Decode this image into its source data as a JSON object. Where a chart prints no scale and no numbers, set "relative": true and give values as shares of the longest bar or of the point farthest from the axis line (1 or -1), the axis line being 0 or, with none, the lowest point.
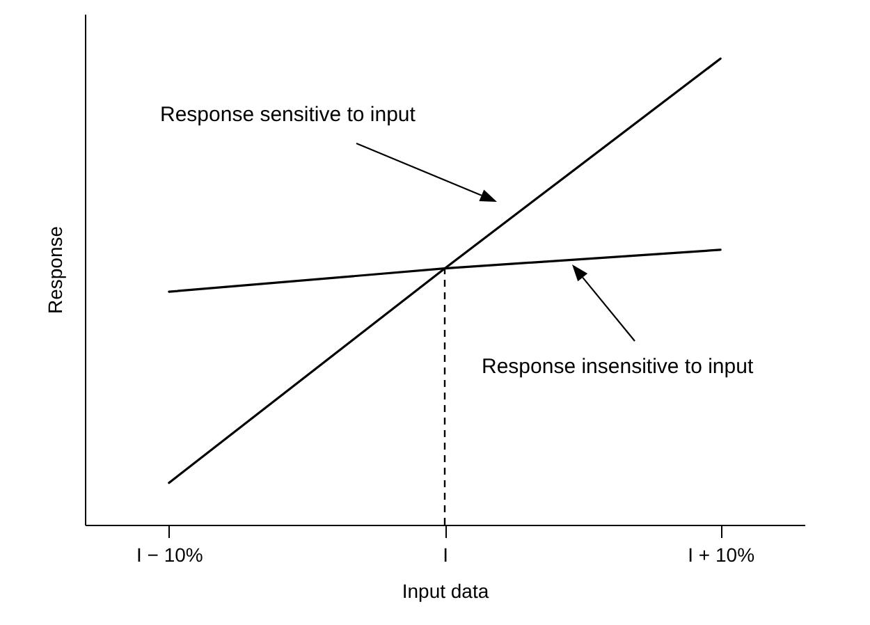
{
  "chart_data": {
    "type": "line",
    "xlabel": "Input data",
    "ylabel": "Response",
    "relative": true,
    "categories": [
      "I − 10%",
      "I",
      "I + 10%"
    ],
    "series": [
      {
        "color": "#000000",
        "values": [
          0.09,
          0.55,
          1
        ]
      },
      {
        "color": "#000000",
        "values": [
          0.5,
          0.55,
          0.59
        ]
      }
    ],
    "ref_lines": [
      {
        "axis": "x",
        "value": "I",
        "line_style": "dashed",
        "color": "#000000"
      }
    ],
    "annotations": [
      "Response sensitive to input",
      "Response insensitive to input"
    ],
    "grid": false,
    "marker": "none",
    "line_style": "solid"
  }
}
